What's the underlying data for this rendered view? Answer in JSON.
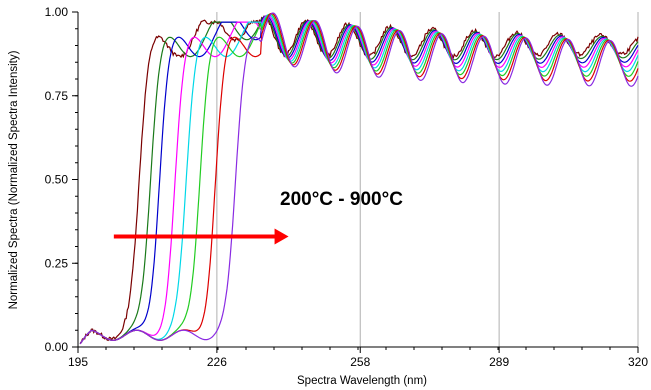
{
  "chart_data": {
    "type": "line",
    "xlabel": "Spectra Wavelength (nm)",
    "ylabel": "Normalized Spectra (Normalized Spectra Intensity)",
    "xlim": [
      195,
      320
    ],
    "ylim": [
      0,
      1.0
    ],
    "x_ticks": [
      "195",
      "226",
      "258",
      "289",
      "320"
    ],
    "x_tick_values": [
      195,
      226,
      258,
      289,
      320
    ],
    "y_ticks": [
      "0.00",
      "0.25",
      "0.50",
      "0.75",
      "1.00"
    ],
    "y_tick_values": [
      0,
      0.25,
      0.5,
      0.75,
      1.0
    ],
    "grid": "vertical-only",
    "annotation": {
      "text": "200°C - 900°C",
      "arrow_x_start": 203,
      "arrow_x_end": 242,
      "arrow_y": 0.33,
      "arrow_color": "#ff0000"
    },
    "series": [
      {
        "color": "#7a0000",
        "edge": 208.5,
        "noise": 1
      },
      {
        "color": "#1a7a1a",
        "edge": 211.0,
        "noise": 0
      },
      {
        "color": "#0000cc",
        "edge": 213.0,
        "noise": 0
      },
      {
        "color": "#ff00ff",
        "edge": 216.5,
        "noise": 0
      },
      {
        "color": "#00d8e8",
        "edge": 219.0,
        "noise": 0
      },
      {
        "color": "#22cc22",
        "edge": 222.0,
        "noise": 0
      },
      {
        "color": "#dd0000",
        "edge": 225.5,
        "noise": 0
      },
      {
        "color": "#8a2be2",
        "edge": 230.0,
        "noise": 0
      }
    ]
  }
}
